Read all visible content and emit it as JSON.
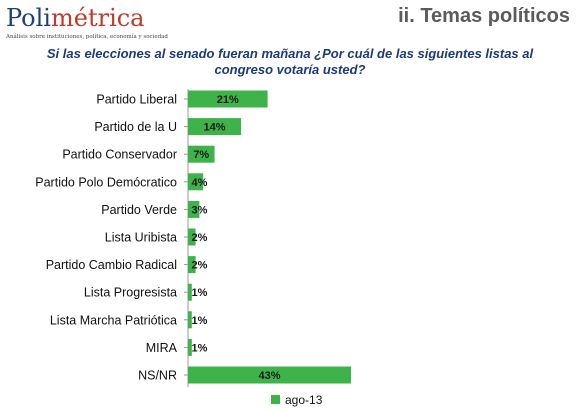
{
  "header": {
    "logo_prefix": "Poli",
    "logo_accent": "métrica",
    "logo_tagline": "Análisis sobre instituciones, política, economía y sociedad",
    "title": "ii. Temas políticos"
  },
  "chart_data": {
    "type": "bar",
    "orientation": "horizontal",
    "title": "Si las elecciones al senado fueran mañana ¿Por cuál de las siguientes listas al congreso votaría usted?",
    "categories": [
      "Partido Liberal",
      "Partido de la U",
      "Partido Conservador",
      "Partido Polo Demócratico",
      "Partido Verde",
      "Lista Uribista",
      "Partido Cambio Radical",
      "Lista Progresista",
      "Lista Marcha Patriótica",
      "MIRA",
      "NS/NR"
    ],
    "series": [
      {
        "name": "ago-13",
        "values": [
          21,
          14,
          7,
          4,
          3,
          2,
          2,
          1,
          1,
          1,
          43
        ],
        "labels": [
          "21%",
          "14%",
          "7%",
          "4%",
          "3%",
          "2%",
          "2%",
          "1%",
          "1%",
          "1%",
          "43%"
        ]
      }
    ],
    "xlim": [
      0,
      43
    ],
    "value_suffix": "%",
    "grid": false,
    "legend_position": "bottom",
    "bar_color": "#3db34a"
  }
}
